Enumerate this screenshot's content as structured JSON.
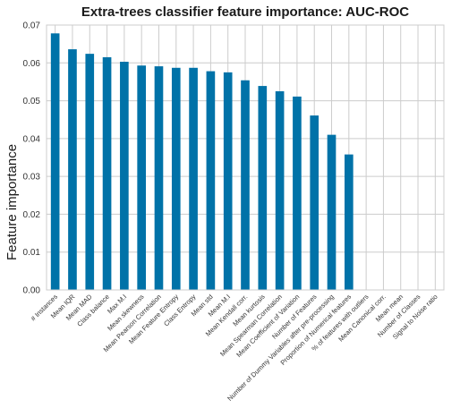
{
  "chart_data": {
    "type": "bar",
    "title": "Extra-trees classifier feature importance: AUC-ROC",
    "xlabel": "",
    "ylabel": "Feature importance",
    "ylim": [
      0,
      0.07
    ],
    "yticks": [
      "0.00",
      "0.01",
      "0.02",
      "0.03",
      "0.04",
      "0.05",
      "0.06",
      "0.07"
    ],
    "grid": true,
    "bar_color": "#0072a8",
    "categories": [
      "# Instances",
      "Mean IQR",
      "Mean MAD",
      "Class balance",
      "Max M.I",
      "Mean skewness",
      "Mean Pearson Correlation",
      "Mean Feature Entropy",
      "Class Entropy",
      "Mean std",
      "Mean M.I",
      "Mean Kendall corr.",
      "Mean kurtosis",
      "Mean Spearman Correlation",
      "Mean Coefficient of Variation",
      "Number of Features",
      "Number of Dummy Variables after pre-processing",
      "Proportion of Numerical features",
      "% of features with outliers",
      "Mean Canonical corr.",
      "Mean mean",
      "Number of Classes",
      "Signal to Noise ratio"
    ],
    "values": [
      0.0678,
      0.0636,
      0.0624,
      0.0615,
      0.0603,
      0.0593,
      0.0591,
      0.0587,
      0.0587,
      0.0578,
      0.0575,
      0.0554,
      0.0539,
      0.0525,
      0.0511,
      0.0461,
      0.041,
      0.0358,
      0,
      0,
      0,
      0,
      0
    ]
  }
}
